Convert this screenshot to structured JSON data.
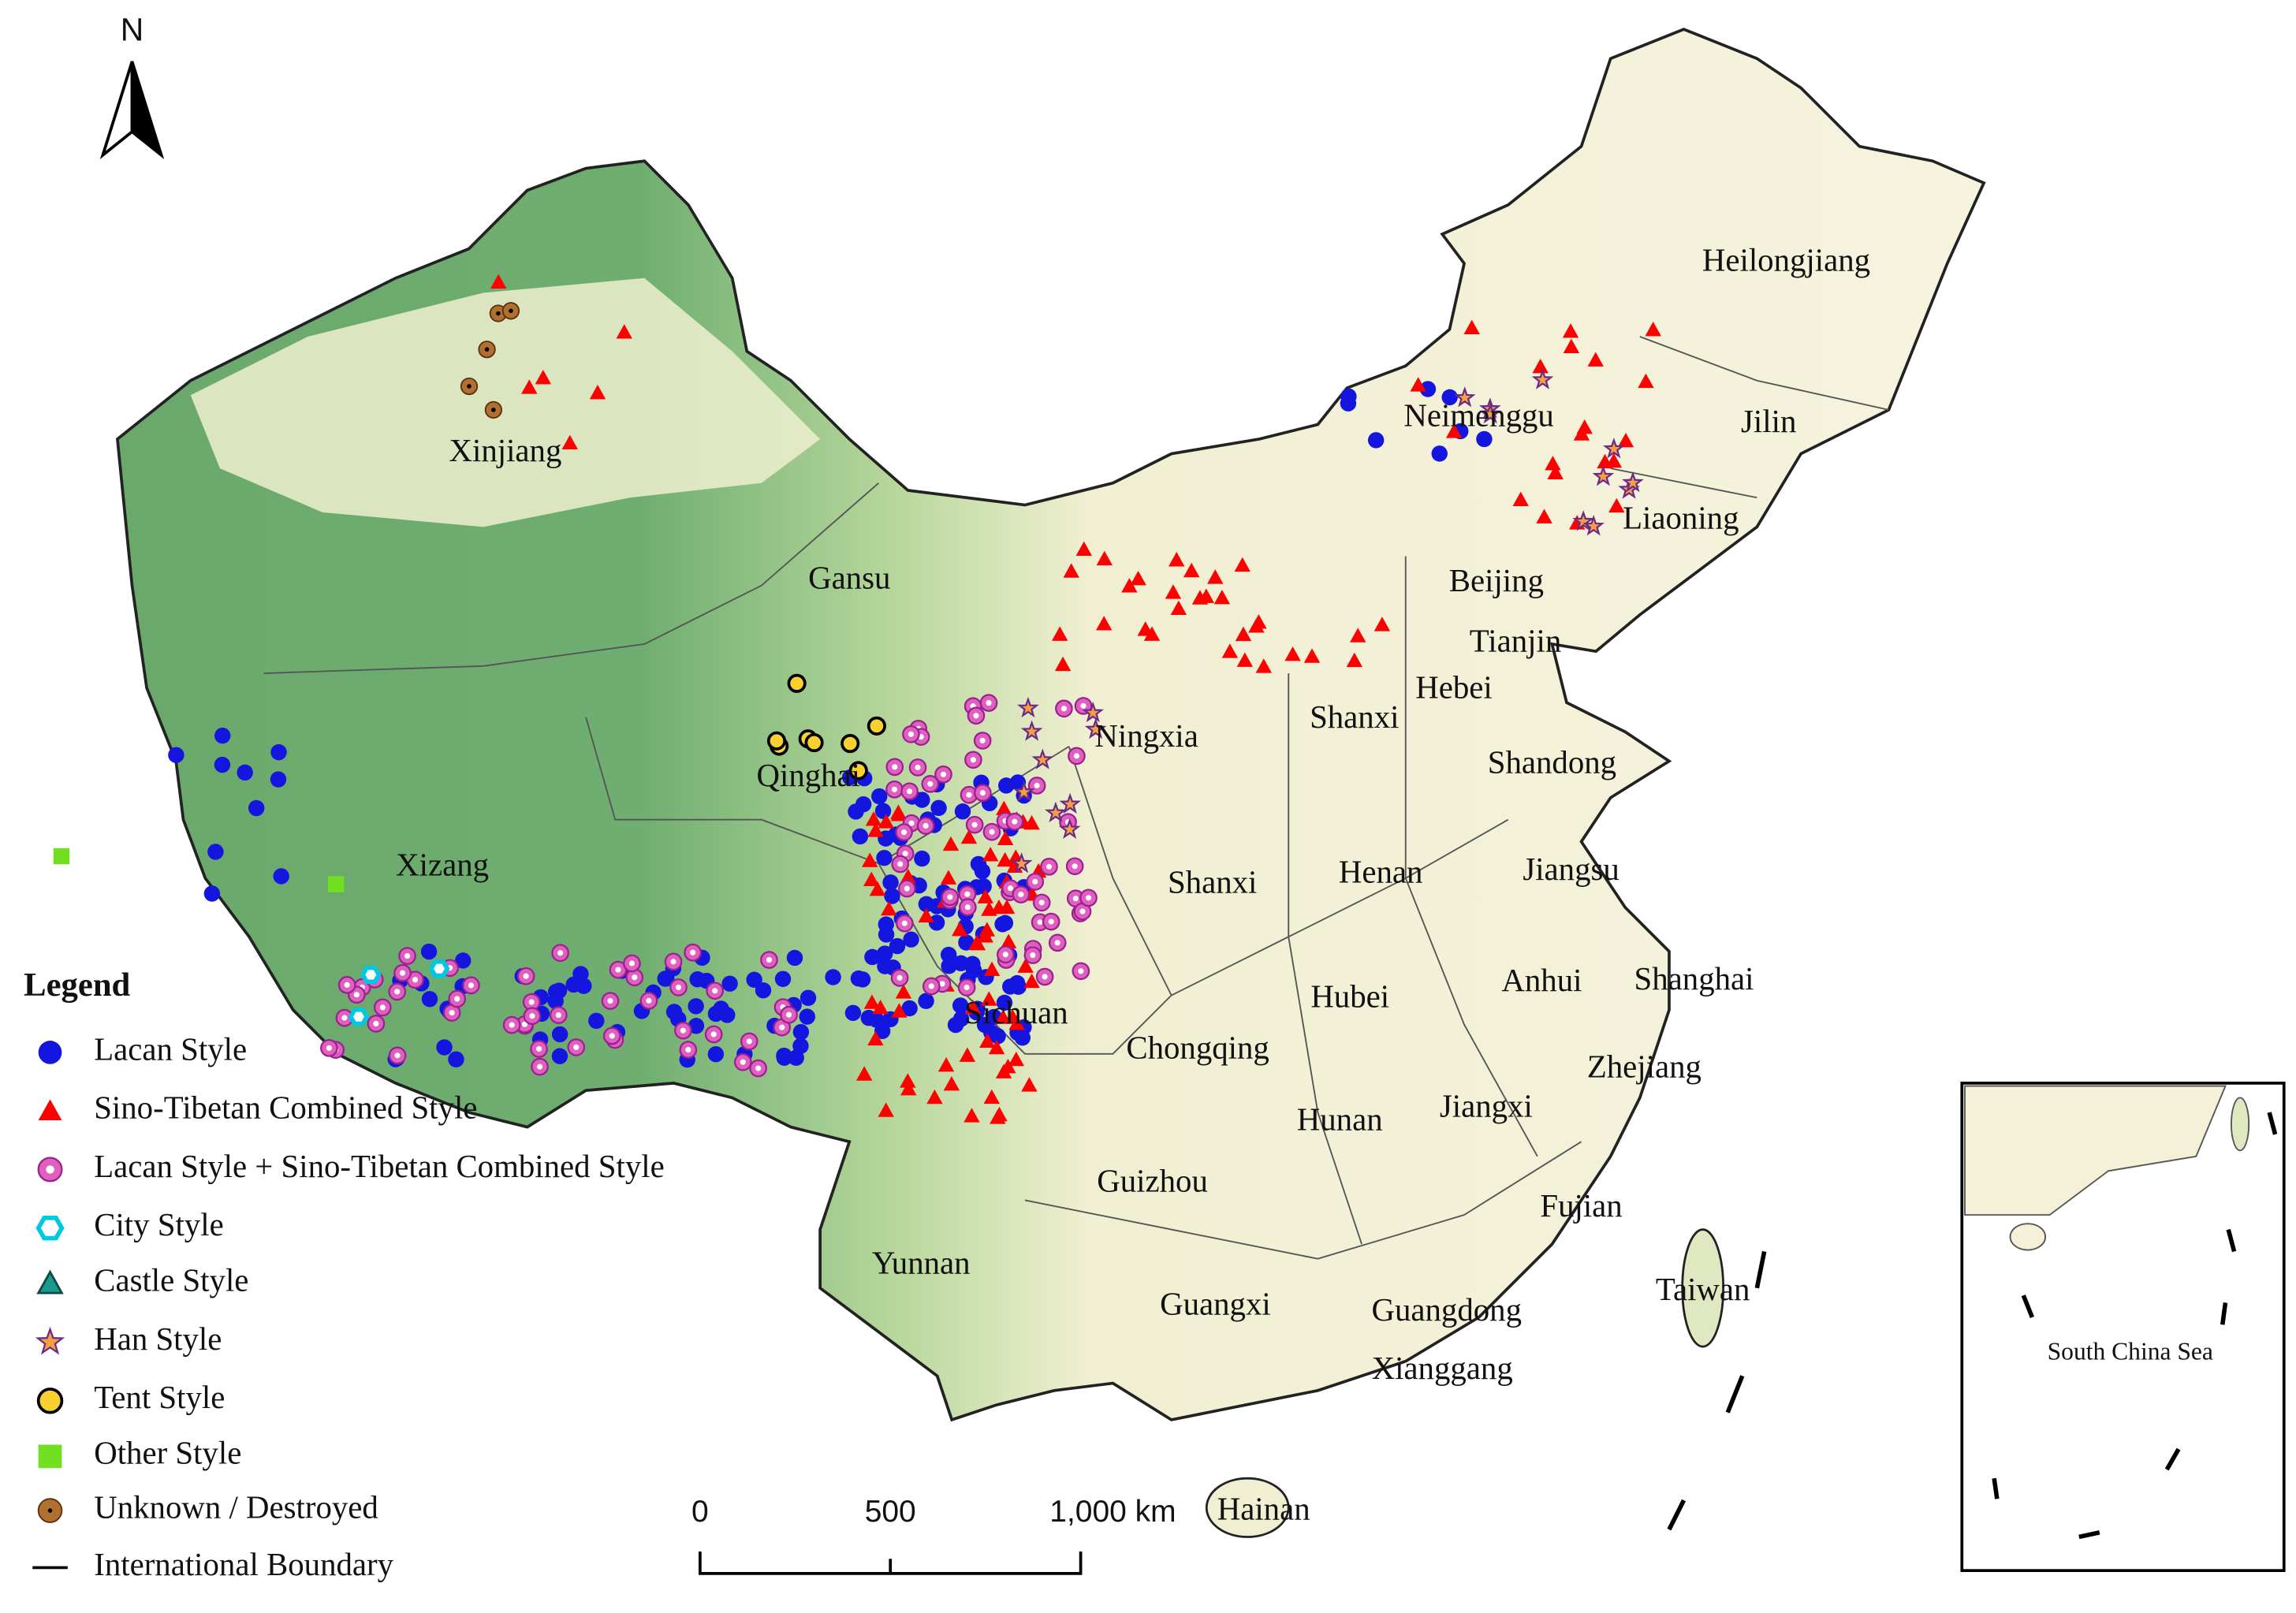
{
  "north_label": "N",
  "regions": [
    {
      "label": "Xinjiang"
    },
    {
      "label": "Gansu"
    },
    {
      "label": "Neimenggu"
    },
    {
      "label": "Heilongjiang"
    },
    {
      "label": "Jilin"
    },
    {
      "label": "Liaoning"
    },
    {
      "label": "Beijing"
    },
    {
      "label": "Tianjin"
    },
    {
      "label": "Hebei"
    },
    {
      "label": "Shanxi"
    },
    {
      "label": "Ningxia"
    },
    {
      "label": "Qinghai"
    },
    {
      "label": "Shandong"
    },
    {
      "label": "Xizang"
    },
    {
      "label": "Shanxi"
    },
    {
      "label": "Henan"
    },
    {
      "label": "Jiangsu"
    },
    {
      "label": "Hubei"
    },
    {
      "label": "Anhui"
    },
    {
      "label": "Shanghai"
    },
    {
      "label": "Sichuan"
    },
    {
      "label": "Chongqing"
    },
    {
      "label": "Zhejiang"
    },
    {
      "label": "Hunan"
    },
    {
      "label": "Jiangxi"
    },
    {
      "label": "Guizhou"
    },
    {
      "label": "Fujian"
    },
    {
      "label": "Yunnan"
    },
    {
      "label": "Guangxi"
    },
    {
      "label": "Guangdong"
    },
    {
      "label": "Taiwan"
    },
    {
      "label": "Xianggang"
    },
    {
      "label": "Hainan"
    }
  ],
  "legend": {
    "title": "Legend",
    "items": [
      "Lacan Style",
      "Sino-Tibetan Combined Style",
      "Lacan Style + Sino-Tibetan Combined Style",
      "City Style",
      "Castle Style",
      "Han Style",
      "Tent Style",
      "Other Style",
      "Unknown / Destroyed",
      "International Boundary"
    ]
  },
  "scale_bar": {
    "labels": [
      "0",
      "500",
      "1,000 km"
    ]
  },
  "inset": {
    "label": "South China Sea"
  }
}
